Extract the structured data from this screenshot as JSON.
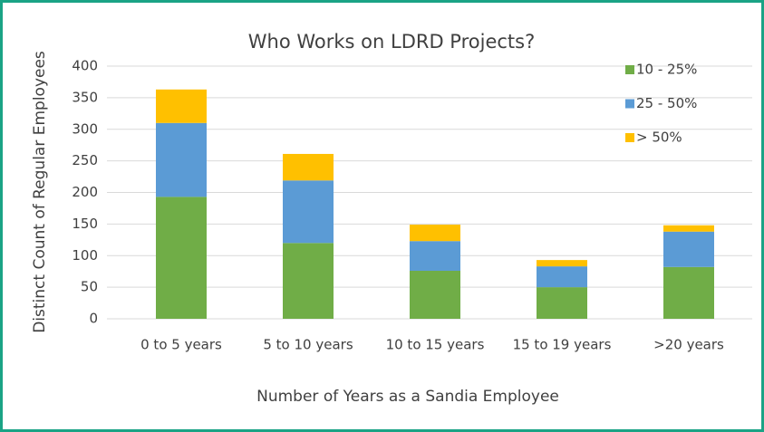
{
  "chart_data": {
    "type": "stacked_bar",
    "title": "Who Works on LDRD Projects?",
    "x_label": "Number of Years as a Sandia Employee",
    "y_label": "Distinct Count of Regular Employees",
    "categories": [
      "0 to 5 years",
      "5 to 10 years",
      "10 to 15 years",
      "15 to 19 years",
      ">20 years"
    ],
    "series": [
      {
        "name": "10 - 25%",
        "color": "#70ad47",
        "values": [
          193,
          120,
          76,
          50,
          82
        ]
      },
      {
        "name": "25 - 50%",
        "color": "#5b9bd5",
        "values": [
          117,
          99,
          47,
          33,
          56
        ]
      },
      {
        "name": "> 50%",
        "color": "#ffc000",
        "values": [
          53,
          42,
          26,
          10,
          10
        ]
      }
    ],
    "ylim": [
      0,
      400
    ],
    "yticks": [
      0,
      50,
      100,
      150,
      200,
      250,
      300,
      350,
      400
    ],
    "grid": true,
    "legend": "upper right"
  }
}
